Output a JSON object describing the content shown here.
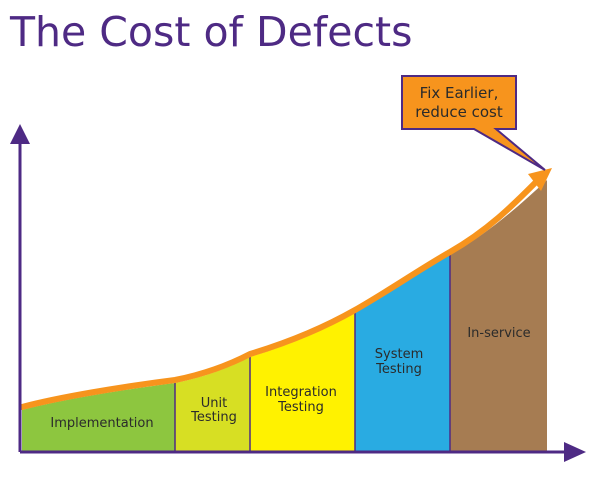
{
  "title": "The Cost of Defects",
  "callout": {
    "line1": "Fix Earlier,",
    "line2": "reduce cost"
  },
  "phases": [
    {
      "lines": [
        "Implementation"
      ],
      "color": "#8dc63f"
    },
    {
      "lines": [
        "Unit",
        "Testing"
      ],
      "color": "#d7df23"
    },
    {
      "lines": [
        "Integration",
        "Testing"
      ],
      "color": "#fff200"
    },
    {
      "lines": [
        "System",
        "Testing"
      ],
      "color": "#29abe2"
    },
    {
      "lines": [
        "In-service"
      ],
      "color": "#a67c52"
    }
  ],
  "colors": {
    "axis": "#4e2a84",
    "curve": "#f7941d",
    "callout_fill": "#f7941d",
    "callout_border": "#4e2a84",
    "title": "#4e2a84"
  }
}
